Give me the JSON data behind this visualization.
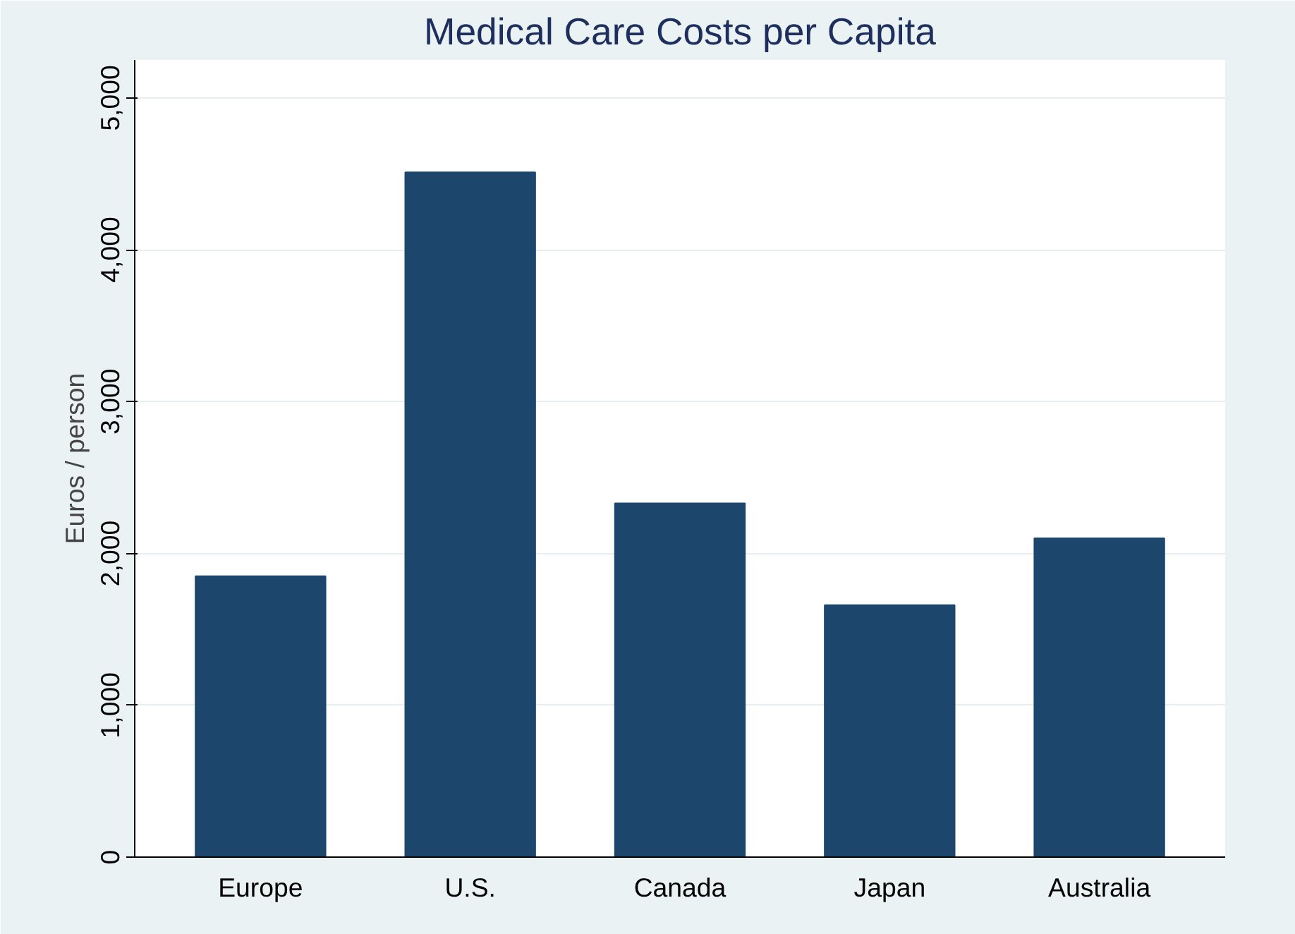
{
  "chart_data": {
    "type": "bar",
    "title": "Medical Care Costs per Capita",
    "ylabel": "Euros / person",
    "categories": [
      "Europe",
      "U.S.",
      "Canada",
      "Japan",
      "Australia"
    ],
    "values": [
      1850,
      4510,
      2330,
      1660,
      2100
    ],
    "color": "#1c466c",
    "ylim": [
      0,
      5250
    ],
    "yticks": [
      0,
      {
        "value": 1000,
        "label": "1,000"
      },
      {
        "value": 2000,
        "label": "2,000"
      },
      {
        "value": 3000,
        "label": "3,000"
      },
      {
        "value": 4000,
        "label": "4,000"
      },
      {
        "value": 5000,
        "label": "5,000"
      }
    ],
    "grid": "y"
  }
}
